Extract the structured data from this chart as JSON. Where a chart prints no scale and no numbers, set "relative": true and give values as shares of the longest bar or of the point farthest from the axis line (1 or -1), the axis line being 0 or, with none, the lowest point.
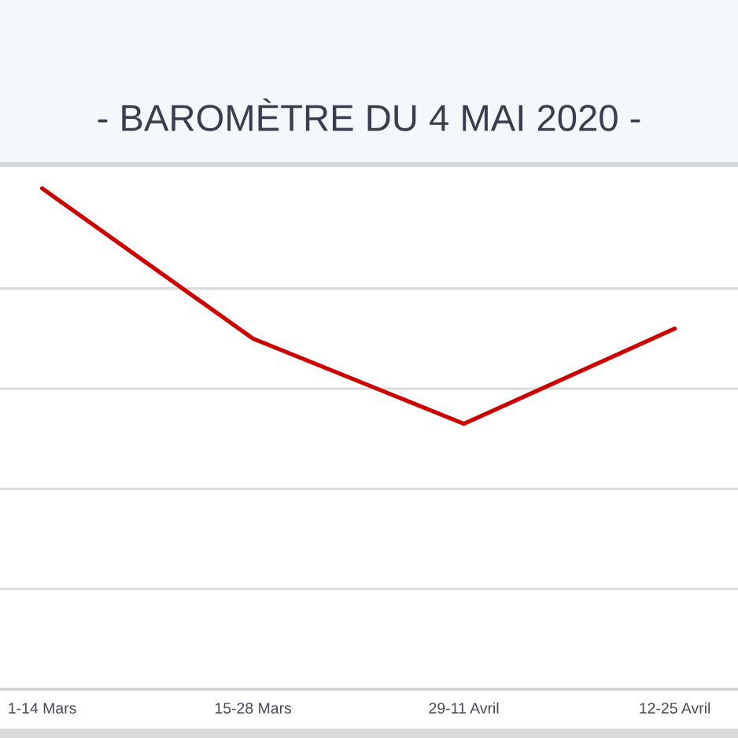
{
  "chart_data": {
    "type": "line",
    "title": "- BAROMÈTRE DU 4 MAI 2020 -",
    "categories": [
      "1-14 Mars",
      "15-28 Mars",
      "29-11 Avril",
      "12-25 Avril"
    ],
    "series": [
      {
        "color": "#cc0000",
        "values": [
          1,
          0.7,
          0.53,
          0.72
        ]
      }
    ],
    "relative": true,
    "grid": "y"
  }
}
